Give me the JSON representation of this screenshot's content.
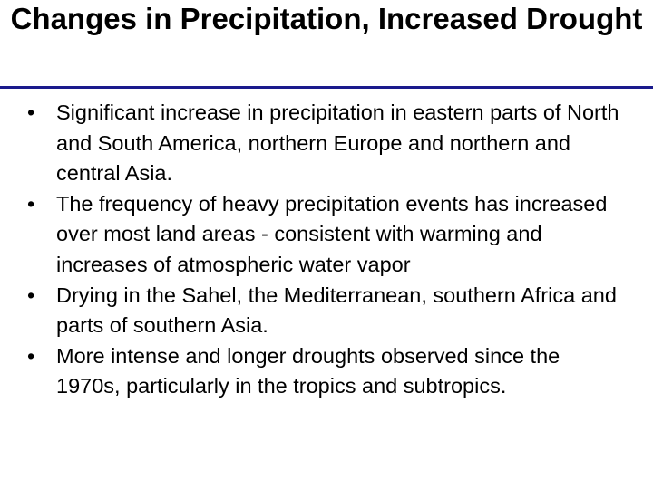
{
  "header": {
    "title": "Changes in Precipitation, Increased Drought"
  },
  "bullets": [
    "Significant increase in precipitation in eastern parts of North and South America, northern Europe and northern and central Asia.",
    "The frequency of heavy precipitation events has increased over most land areas - consistent with warming and increases of atmospheric water vapor",
    "Drying in the Sahel, the Mediterranean, southern Africa and parts of southern Asia.",
    "More intense and longer droughts observed since the 1970s, particularly in the tropics and subtropics."
  ]
}
